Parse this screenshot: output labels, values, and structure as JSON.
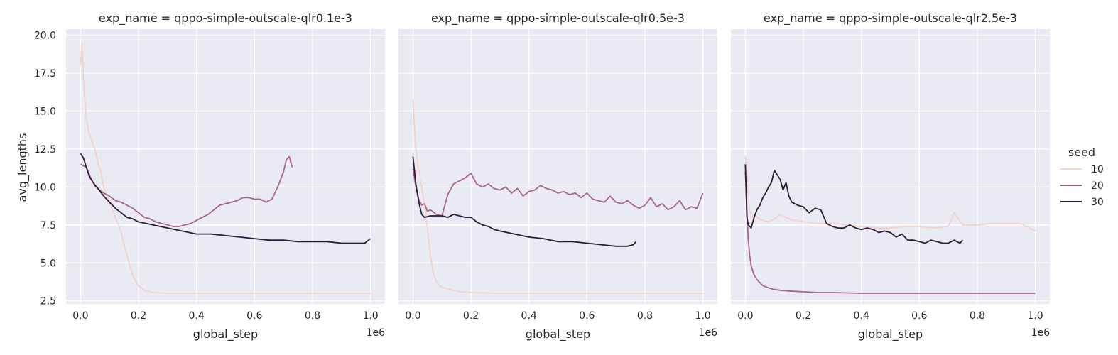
{
  "chart_data": {
    "type": "line",
    "facet_variable": "exp_name",
    "ylabel": "avg_lengths",
    "xlabel": "global_step",
    "x_offset_label": "1e6",
    "xlim": [
      -0.05,
      1.05
    ],
    "ylim": [
      2.3,
      20.4
    ],
    "xticks": [
      0.0,
      0.2,
      0.4,
      0.6,
      0.8,
      1.0
    ],
    "xtick_labels": [
      "0.0",
      "0.2",
      "0.4",
      "0.6",
      "0.8",
      "1.0"
    ],
    "yticks": [
      2.5,
      5.0,
      7.5,
      10.0,
      12.5,
      15.0,
      17.5,
      20.0
    ],
    "ytick_labels": [
      "2.5",
      "5.0",
      "7.5",
      "10.0",
      "12.5",
      "15.0",
      "17.5",
      "20.0"
    ],
    "grid": true,
    "background": "#eaeaf2",
    "legend": {
      "title": "seed",
      "placement": "right",
      "entries": [
        {
          "label": "10",
          "color": "#f1d3c9"
        },
        {
          "label": "20",
          "color": "#a9648e"
        },
        {
          "label": "30",
          "color": "#2a1b3a"
        }
      ]
    },
    "panels": [
      {
        "title": "exp_name = qppo-simple-outscale-qlr0.1e-3",
        "series": [
          {
            "name": "10",
            "color": "#f1d3c9",
            "x": [
              0.0,
              0.005,
              0.01,
              0.02,
              0.03,
              0.04,
              0.05,
              0.06,
              0.07,
              0.08,
              0.09,
              0.1,
              0.11,
              0.12,
              0.13,
              0.14,
              0.15,
              0.16,
              0.17,
              0.18,
              0.19,
              0.2,
              0.22,
              0.25,
              0.3,
              0.4,
              0.5,
              0.6,
              0.7,
              0.8,
              0.9,
              1.0
            ],
            "y": [
              18.0,
              19.6,
              17.0,
              14.5,
              13.5,
              13.0,
              12.5,
              11.6,
              11.0,
              10.0,
              9.5,
              9.0,
              8.5,
              8.0,
              7.6,
              7.0,
              6.2,
              5.5,
              4.8,
              4.2,
              3.8,
              3.5,
              3.2,
              3.05,
              3.0,
              3.0,
              3.0,
              3.0,
              3.0,
              3.0,
              3.0,
              3.0
            ]
          },
          {
            "name": "20",
            "color": "#a9648e",
            "x": [
              0.0,
              0.02,
              0.04,
              0.06,
              0.08,
              0.1,
              0.12,
              0.14,
              0.16,
              0.18,
              0.2,
              0.22,
              0.24,
              0.26,
              0.28,
              0.3,
              0.32,
              0.34,
              0.36,
              0.38,
              0.4,
              0.42,
              0.44,
              0.46,
              0.48,
              0.5,
              0.52,
              0.54,
              0.56,
              0.58,
              0.6,
              0.62,
              0.64,
              0.66,
              0.68,
              0.7,
              0.71,
              0.72,
              0.73
            ],
            "y": [
              11.5,
              11.3,
              10.4,
              9.9,
              9.6,
              9.4,
              9.1,
              9.0,
              8.8,
              8.6,
              8.3,
              8.0,
              7.9,
              7.7,
              7.6,
              7.5,
              7.4,
              7.4,
              7.5,
              7.6,
              7.8,
              8.0,
              8.2,
              8.5,
              8.8,
              8.9,
              9.0,
              9.1,
              9.3,
              9.3,
              9.2,
              9.2,
              9.0,
              9.2,
              10.0,
              11.0,
              11.8,
              12.0,
              11.3
            ]
          },
          {
            "name": "30",
            "color": "#2a1b3a",
            "x": [
              0.0,
              0.01,
              0.02,
              0.03,
              0.04,
              0.05,
              0.06,
              0.08,
              0.1,
              0.12,
              0.14,
              0.16,
              0.18,
              0.2,
              0.25,
              0.3,
              0.35,
              0.4,
              0.45,
              0.5,
              0.55,
              0.6,
              0.65,
              0.7,
              0.75,
              0.8,
              0.85,
              0.9,
              0.95,
              0.98,
              1.0
            ],
            "y": [
              12.2,
              11.9,
              11.3,
              10.7,
              10.4,
              10.1,
              9.9,
              9.4,
              9.0,
              8.6,
              8.3,
              8.0,
              7.9,
              7.7,
              7.5,
              7.3,
              7.1,
              6.9,
              6.9,
              6.8,
              6.7,
              6.6,
              6.5,
              6.5,
              6.4,
              6.4,
              6.4,
              6.3,
              6.3,
              6.3,
              6.6
            ]
          }
        ]
      },
      {
        "title": "exp_name = qppo-simple-outscale-qlr0.5e-3",
        "series": [
          {
            "name": "10",
            "color": "#f1d3c9",
            "x": [
              0.0,
              0.005,
              0.01,
              0.02,
              0.03,
              0.04,
              0.05,
              0.06,
              0.07,
              0.08,
              0.09,
              0.1,
              0.12,
              0.15,
              0.2,
              0.3,
              0.4,
              0.5,
              0.6,
              0.7,
              0.8,
              0.9,
              1.0
            ],
            "y": [
              15.8,
              14.0,
              12.5,
              11.0,
              10.0,
              8.8,
              7.2,
              5.5,
              4.3,
              3.8,
              3.5,
              3.4,
              3.3,
              3.15,
              3.05,
              3.0,
              3.0,
              3.0,
              3.0,
              3.0,
              3.0,
              3.0,
              3.0
            ]
          },
          {
            "name": "20",
            "color": "#a9648e",
            "x": [
              0.0,
              0.01,
              0.02,
              0.03,
              0.04,
              0.05,
              0.06,
              0.08,
              0.1,
              0.12,
              0.14,
              0.16,
              0.18,
              0.2,
              0.22,
              0.24,
              0.26,
              0.28,
              0.3,
              0.32,
              0.34,
              0.36,
              0.38,
              0.4,
              0.42,
              0.44,
              0.46,
              0.48,
              0.5,
              0.52,
              0.54,
              0.56,
              0.58,
              0.6,
              0.62,
              0.64,
              0.66,
              0.68,
              0.7,
              0.72,
              0.74,
              0.76,
              0.78,
              0.8,
              0.82,
              0.84,
              0.86,
              0.88,
              0.9,
              0.92,
              0.94,
              0.96,
              0.98,
              1.0
            ],
            "y": [
              11.2,
              10.0,
              9.2,
              8.8,
              8.9,
              8.4,
              8.5,
              8.2,
              8.1,
              9.5,
              10.2,
              10.4,
              10.6,
              10.9,
              10.2,
              10.0,
              10.2,
              9.9,
              9.8,
              10.0,
              9.6,
              9.9,
              9.4,
              9.7,
              9.8,
              10.1,
              9.9,
              9.8,
              9.6,
              9.7,
              9.5,
              9.6,
              9.3,
              9.6,
              9.2,
              9.1,
              9.0,
              9.4,
              9.0,
              8.9,
              9.1,
              8.8,
              8.6,
              8.8,
              9.3,
              8.7,
              8.9,
              8.5,
              8.7,
              9.1,
              8.5,
              8.7,
              8.6,
              9.6
            ]
          },
          {
            "name": "30",
            "color": "#2a1b3a",
            "x": [
              0.0,
              0.01,
              0.02,
              0.03,
              0.04,
              0.06,
              0.08,
              0.1,
              0.12,
              0.14,
              0.16,
              0.18,
              0.2,
              0.22,
              0.24,
              0.26,
              0.28,
              0.3,
              0.35,
              0.4,
              0.45,
              0.5,
              0.55,
              0.6,
              0.65,
              0.7,
              0.74,
              0.76,
              0.77
            ],
            "y": [
              12.0,
              10.2,
              9.0,
              8.2,
              8.0,
              8.1,
              8.1,
              8.1,
              8.0,
              8.2,
              8.1,
              8.0,
              8.0,
              7.7,
              7.5,
              7.4,
              7.2,
              7.1,
              6.9,
              6.7,
              6.6,
              6.4,
              6.4,
              6.3,
              6.2,
              6.1,
              6.1,
              6.2,
              6.4
            ]
          }
        ]
      },
      {
        "title": "exp_name = qppo-simple-outscale-qlr2.5e-3",
        "series": [
          {
            "name": "10",
            "color": "#f1d3c9",
            "x": [
              0.0,
              0.005,
              0.01,
              0.02,
              0.03,
              0.04,
              0.06,
              0.08,
              0.1,
              0.12,
              0.14,
              0.16,
              0.18,
              0.2,
              0.25,
              0.3,
              0.35,
              0.4,
              0.45,
              0.5,
              0.55,
              0.6,
              0.65,
              0.7,
              0.72,
              0.75,
              0.8,
              0.85,
              0.9,
              0.95,
              1.0
            ],
            "y": [
              12.0,
              11.0,
              9.0,
              8.0,
              8.2,
              8.0,
              7.8,
              7.7,
              7.9,
              8.2,
              8.0,
              7.8,
              7.8,
              7.7,
              7.6,
              7.6,
              7.5,
              7.4,
              7.3,
              7.3,
              7.4,
              7.4,
              7.3,
              7.4,
              8.3,
              7.5,
              7.5,
              7.6,
              7.6,
              7.6,
              7.1
            ]
          },
          {
            "name": "20",
            "color": "#a9648e",
            "x": [
              0.0,
              0.005,
              0.01,
              0.015,
              0.02,
              0.03,
              0.04,
              0.05,
              0.06,
              0.08,
              0.1,
              0.12,
              0.15,
              0.2,
              0.25,
              0.3,
              0.4,
              0.5,
              0.6,
              0.7,
              0.8,
              0.9,
              1.0
            ],
            "y": [
              11.0,
              8.5,
              6.5,
              5.5,
              4.8,
              4.2,
              3.9,
              3.7,
              3.5,
              3.35,
              3.25,
              3.2,
              3.15,
              3.1,
              3.05,
              3.05,
              3.0,
              3.0,
              3.0,
              3.0,
              3.0,
              3.0,
              3.0
            ]
          },
          {
            "name": "30",
            "color": "#2a1b3a",
            "x": [
              0.0,
              0.005,
              0.01,
              0.02,
              0.03,
              0.04,
              0.05,
              0.06,
              0.07,
              0.08,
              0.09,
              0.1,
              0.11,
              0.12,
              0.13,
              0.14,
              0.15,
              0.16,
              0.18,
              0.2,
              0.22,
              0.24,
              0.26,
              0.28,
              0.3,
              0.32,
              0.34,
              0.36,
              0.38,
              0.4,
              0.42,
              0.44,
              0.46,
              0.48,
              0.5,
              0.52,
              0.54,
              0.56,
              0.58,
              0.6,
              0.62,
              0.64,
              0.66,
              0.68,
              0.7,
              0.72,
              0.74,
              0.75
            ],
            "y": [
              11.5,
              8.0,
              7.5,
              7.3,
              8.0,
              8.5,
              8.8,
              9.3,
              9.6,
              10.0,
              10.3,
              11.1,
              10.8,
              10.5,
              9.8,
              10.3,
              9.4,
              9.0,
              8.8,
              8.7,
              8.3,
              8.6,
              8.5,
              7.6,
              7.4,
              7.3,
              7.3,
              7.5,
              7.3,
              7.2,
              7.3,
              7.2,
              7.0,
              7.1,
              7.0,
              6.7,
              6.9,
              6.5,
              6.5,
              6.4,
              6.3,
              6.5,
              6.4,
              6.3,
              6.3,
              6.5,
              6.3,
              6.5
            ]
          }
        ]
      }
    ]
  }
}
